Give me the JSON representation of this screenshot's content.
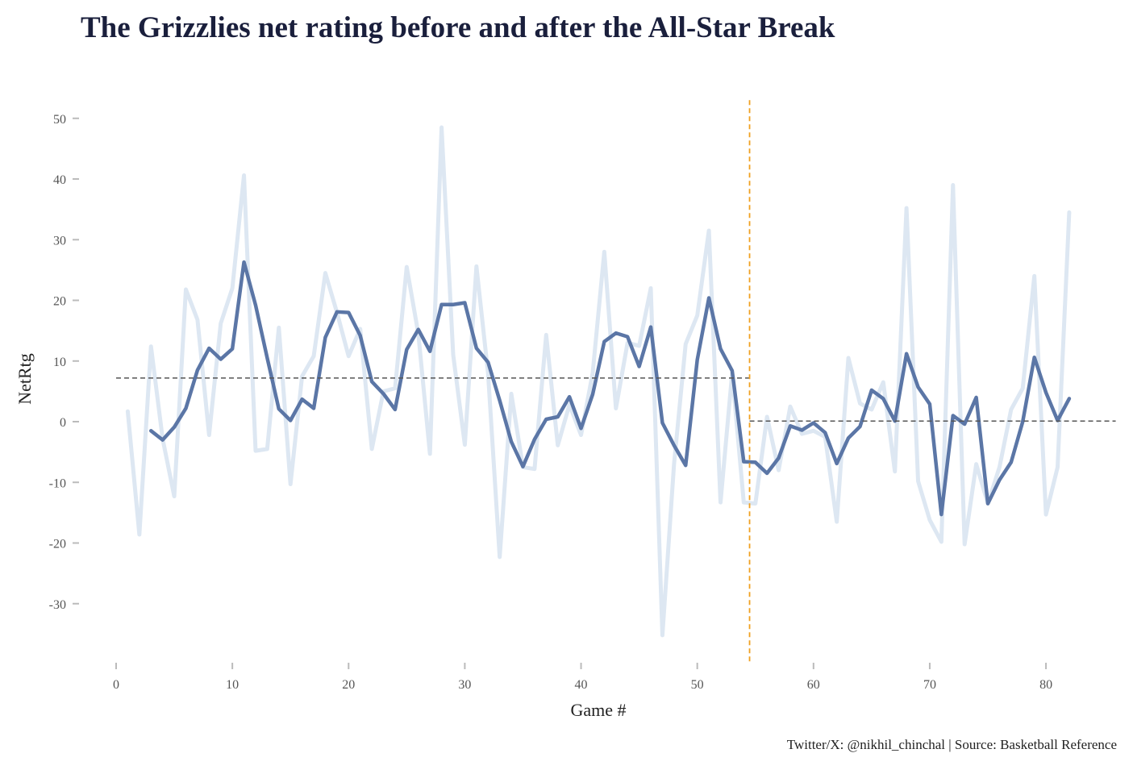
{
  "chart_data": {
    "type": "line",
    "title": "The Grizzlies net rating before and after the All-Star Break",
    "x_label": "Game #",
    "y_label": "NetRtg",
    "caption": "Twitter/X: @nikhil_chinchal | Source: Basketball Reference",
    "x": [
      1,
      2,
      3,
      4,
      5,
      6,
      7,
      8,
      9,
      10,
      11,
      12,
      13,
      14,
      15,
      16,
      17,
      18,
      19,
      20,
      21,
      22,
      23,
      24,
      25,
      26,
      27,
      28,
      29,
      30,
      31,
      32,
      33,
      34,
      35,
      36,
      37,
      38,
      39,
      40,
      41,
      42,
      43,
      44,
      45,
      46,
      47,
      48,
      49,
      50,
      51,
      52,
      53,
      54,
      55,
      56,
      57,
      58,
      59,
      60,
      61,
      62,
      63,
      64,
      65,
      66,
      67,
      68,
      69,
      70,
      71,
      72,
      73,
      74,
      75,
      76,
      77,
      78,
      79,
      80,
      81,
      82
    ],
    "series": [
      {
        "color": "#dde7f2",
        "values": [
          1.7,
          -18.6,
          12.4,
          -2.8,
          -12.3,
          21.8,
          16.8,
          -2.2,
          16.2,
          22,
          40.6,
          -4.8,
          -4.5,
          15.5,
          -10.3,
          7.5,
          10.8,
          24.5,
          18,
          10.8,
          15.3,
          -4.5,
          5,
          5.5,
          25.5,
          14.5,
          -5.3,
          48.5,
          11,
          -3.8,
          25.6,
          8,
          -22.3,
          4.6,
          -7.5,
          -7.8,
          14.3,
          -3.9,
          2.8,
          -2.2,
          8,
          28,
          2.2,
          13,
          12.5,
          22,
          -35.2,
          -7,
          12.8,
          17.5,
          31.5,
          -13.3,
          8,
          -13.3,
          -13.5,
          0.8,
          -8,
          2.5,
          -2,
          -1.5,
          -2.5,
          -16.5,
          10.5,
          3,
          2,
          6.5,
          -8.2,
          35.2,
          -9.8,
          -16.2,
          -19.8,
          39,
          -20.2,
          -7,
          -13.5,
          -7.5,
          2,
          5.5,
          24,
          -15.3,
          -7.5,
          34.5
        ]
      },
      {
        "color": "#5b76a6",
        "values": [
          null,
          null,
          -1.5,
          -3,
          -0.9,
          2.2,
          8.5,
          12.1,
          10.3,
          12,
          26.3,
          19.2,
          10.5,
          2.1,
          0.2,
          3.7,
          2.2,
          13.9,
          18.1,
          18,
          14.2,
          6.6,
          4.6,
          2,
          11.9,
          15.2,
          11.6,
          19.3,
          19.3,
          19.6,
          12.1,
          9.8,
          3.5,
          -3.3,
          -7.4,
          -2.9,
          0.4,
          0.8,
          4.1,
          -1.1,
          4.5,
          13.2,
          14.6,
          14,
          9.1,
          15.6,
          -0.2,
          -3.9,
          -7.2,
          10.2,
          20.4,
          12,
          8.4,
          -6.6,
          -6.7,
          -8.5,
          -6,
          -0.7,
          -1.4,
          -0.2,
          -1.8,
          -6.9,
          -2.7,
          -0.8,
          5.2,
          3.8,
          0.1,
          11.2,
          5.7,
          2.9,
          -15.3,
          1,
          -0.4,
          4,
          -13.5,
          -9.6,
          -6.7,
          0,
          10.6,
          4.8,
          0.2,
          3.8
        ]
      }
    ],
    "mean_lines": [
      {
        "value": 7.2,
        "x": [
          0,
          54.5
        ]
      },
      {
        "value": 0.1,
        "x": [
          54.5,
          86
        ]
      }
    ],
    "break_line": 54.5,
    "break_color": "#f0a020",
    "xlim": [
      0,
      86.1
    ],
    "ylim": [
      -40,
      53
    ],
    "xticks": [
      0,
      10,
      20,
      30,
      40,
      50,
      60,
      70,
      80
    ],
    "yticks": [
      -30,
      -20,
      -10,
      0,
      10,
      20,
      30,
      40,
      50
    ]
  }
}
